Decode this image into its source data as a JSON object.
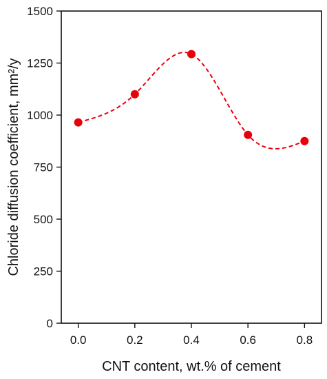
{
  "chart_data": {
    "type": "scatter",
    "xlabel": "CNT content, wt.% of cement",
    "ylabel": "Chloride diffusion coefficient, mm²/y",
    "xlim": [
      -0.06,
      0.86
    ],
    "ylim": [
      0,
      1500
    ],
    "x_ticks": [
      0.0,
      0.2,
      0.4,
      0.6,
      0.8
    ],
    "x_tick_labels": [
      "0.0",
      "0.2",
      "0.4",
      "0.6",
      "0.8"
    ],
    "y_ticks": [
      0,
      250,
      500,
      750,
      1000,
      1250,
      1500
    ],
    "y_tick_labels": [
      "0",
      "250",
      "500",
      "750",
      "1000",
      "1250",
      "1500"
    ],
    "grid": false,
    "series": [
      {
        "x": [
          0.0,
          0.2,
          0.4,
          0.6,
          0.8
        ],
        "y": [
          965,
          1100,
          1293,
          905,
          875
        ],
        "color": "#e8000b",
        "marker": "circle",
        "fit_line": "dashed smooth curve"
      }
    ]
  }
}
